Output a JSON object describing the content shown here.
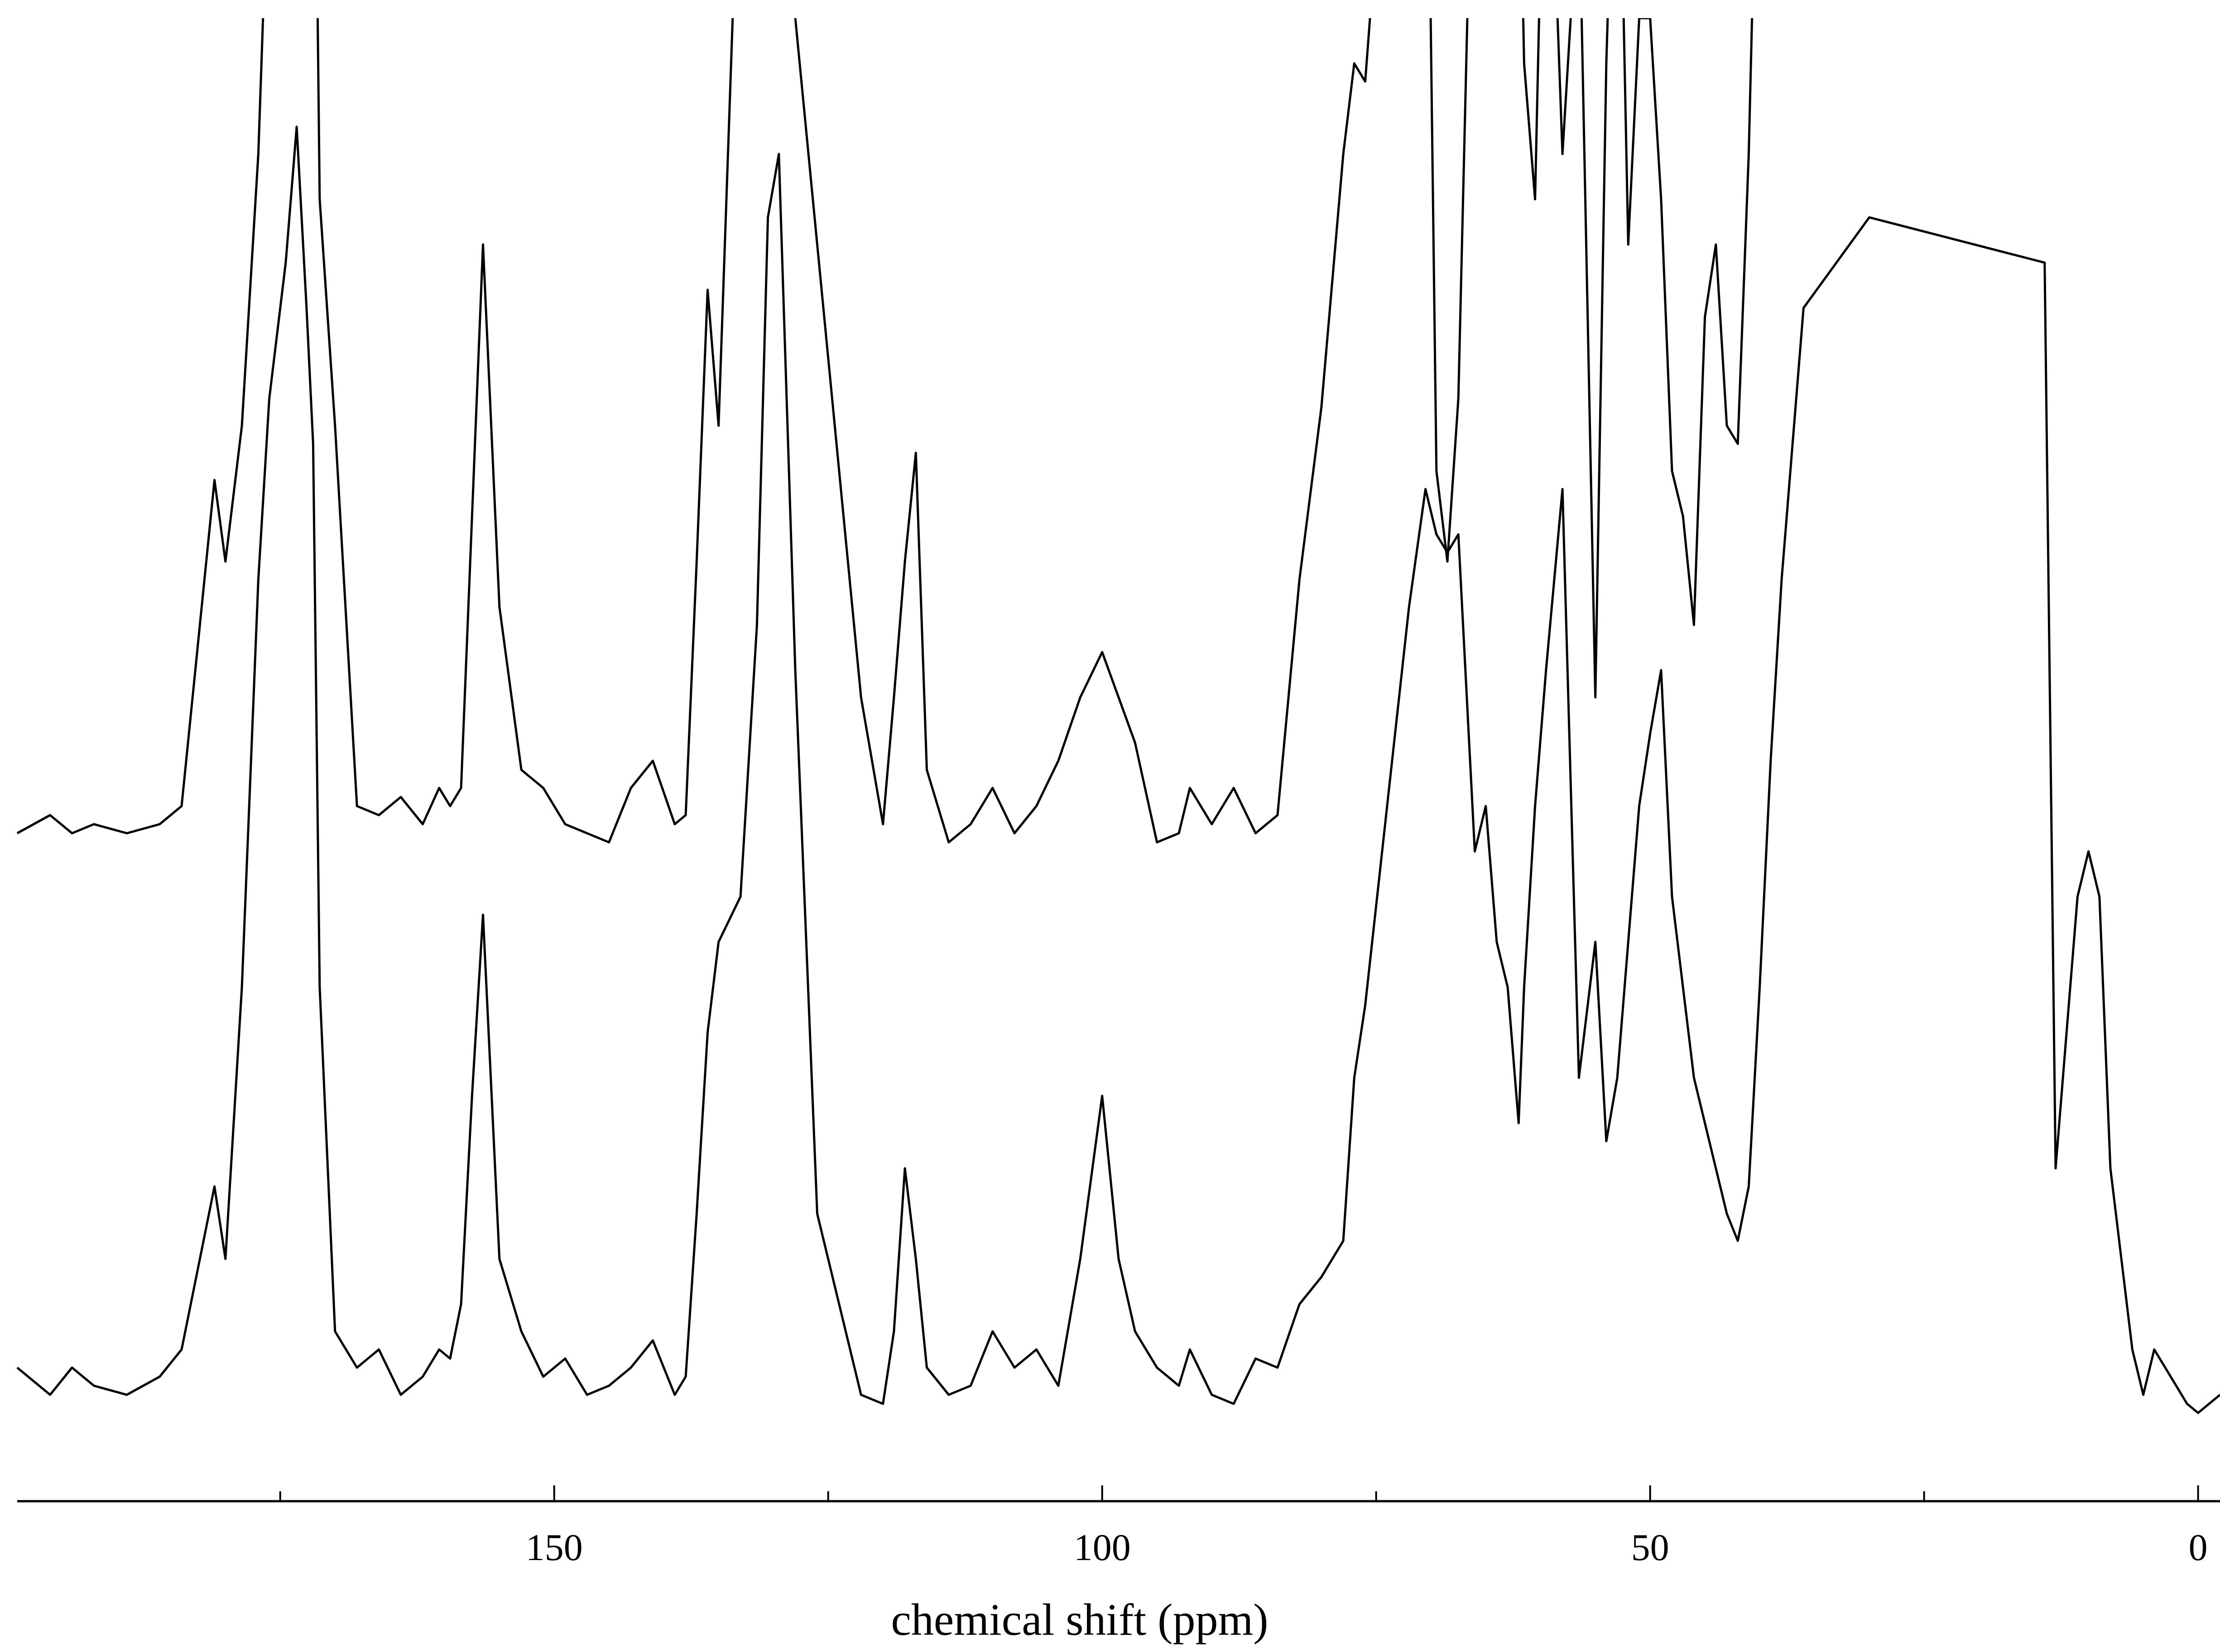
{
  "chart_data": {
    "type": "line",
    "title": "",
    "xlabel": "chemical shift (ppm)",
    "ylabel": "",
    "xlim": [
      199,
      -2
    ],
    "x_reversed": true,
    "ticks": {
      "major": [
        150,
        100,
        50,
        0
      ],
      "major_labels": [
        "150",
        "100",
        "50",
        "0"
      ],
      "minor": [
        175,
        125,
        75,
        25
      ]
    },
    "grid": false,
    "legend": "none",
    "line_color": "#000000",
    "series": [
      {
        "offset": 0.62,
        "x": [
          199,
          196,
          194,
          192,
          189,
          186,
          184,
          181,
          180,
          178.5,
          177,
          176,
          174.5,
          173.5,
          172.6,
          172,
          171.4,
          170,
          168,
          166,
          164,
          162,
          160.5,
          159.5,
          158.5,
          157.5,
          156.5,
          155,
          153,
          151,
          149,
          147,
          145,
          143,
          141,
          139,
          138,
          137,
          136,
          135,
          133,
          131.5,
          130.5,
          129.5,
          128,
          126,
          124,
          122,
          120,
          119,
          118,
          117,
          116,
          114,
          112,
          110,
          108,
          106,
          104,
          102,
          100,
          98.5,
          97,
          95,
          93,
          92,
          90,
          88,
          86,
          84,
          82,
          80,
          78,
          77,
          76,
          74,
          72,
          70.5,
          69.5,
          68.5,
          67.5,
          66,
          65,
          64,
          63,
          62,
          61.5,
          60.5,
          59.5,
          58,
          56.5,
          55,
          54,
          53,
          52,
          51,
          50,
          49,
          48,
          47,
          46,
          45,
          44,
          43,
          42,
          41,
          40,
          39,
          38,
          37
        ],
        "y": [
          0.05,
          0.07,
          0.05,
          0.06,
          0.05,
          0.06,
          0.08,
          0.44,
          0.35,
          0.5,
          0.8,
          1.15,
          1.35,
          1.45,
          1.38,
          1.4,
          0.75,
          0.5,
          0.08,
          0.07,
          0.09,
          0.06,
          0.1,
          0.08,
          0.1,
          0.4,
          0.7,
          0.3,
          0.12,
          0.1,
          0.06,
          0.05,
          0.04,
          0.1,
          0.13,
          0.06,
          0.07,
          0.35,
          0.65,
          0.5,
          1.2,
          1.4,
          1.42,
          1.3,
          0.95,
          0.7,
          0.45,
          0.2,
          0.06,
          0.2,
          0.35,
          0.47,
          0.12,
          0.04,
          0.06,
          0.1,
          0.05,
          0.08,
          0.13,
          0.2,
          0.25,
          0.2,
          0.15,
          0.04,
          0.05,
          0.1,
          0.06,
          0.1,
          0.05,
          0.07,
          0.33,
          0.52,
          0.8,
          0.9,
          0.88,
          1.2,
          1.35,
          1.4,
          0.45,
          0.35,
          0.53,
          1.3,
          1.45,
          1.4,
          1.42,
          1.2,
          0.9,
          0.75,
          1.3,
          0.8,
          1.1,
          0.2,
          0.9,
          1.3,
          0.7,
          0.95,
          0.95,
          0.75,
          0.45,
          0.4,
          0.28,
          0.62,
          0.7,
          0.5,
          0.48,
          0.8,
          1.3,
          1.35,
          1.4,
          1.42
        ]
      },
      {
        "offset": 0.0,
        "x": [
          199,
          196,
          194,
          192,
          189,
          186,
          184,
          181,
          180,
          178.5,
          177,
          176,
          174.5,
          173.5,
          172.6,
          172,
          171.4,
          170,
          168,
          166,
          164,
          162,
          160.5,
          159.5,
          158.5,
          157.5,
          156.5,
          155,
          153,
          151,
          149,
          147,
          145,
          143,
          141,
          139,
          138,
          137,
          136,
          135,
          133,
          131.5,
          130.5,
          129.5,
          128,
          126,
          124,
          122,
          120,
          119,
          118,
          117,
          116,
          114,
          112,
          110,
          108,
          106,
          104,
          102,
          100,
          98.5,
          97,
          95,
          93,
          92,
          90,
          88,
          86,
          84,
          82,
          80,
          78,
          77,
          76,
          74,
          72,
          70.5,
          69.5,
          68.5,
          67.5,
          66,
          65,
          64,
          63,
          62,
          61.5,
          60.5,
          59.5,
          58,
          56.5,
          55,
          54,
          53,
          52,
          51,
          50,
          49,
          48,
          47,
          46,
          45,
          44,
          43,
          42,
          41,
          40,
          39,
          38,
          37,
          36,
          30,
          14,
          13,
          11,
          10,
          9,
          8,
          6,
          5,
          4,
          3,
          2,
          1,
          0,
          -2
        ],
        "y": [
          0.08,
          0.05,
          0.08,
          0.06,
          0.05,
          0.07,
          0.1,
          0.28,
          0.2,
          0.5,
          0.95,
          1.15,
          1.3,
          1.45,
          1.25,
          1.1,
          0.5,
          0.12,
          0.08,
          0.1,
          0.05,
          0.07,
          0.1,
          0.09,
          0.15,
          0.38,
          0.58,
          0.2,
          0.12,
          0.07,
          0.09,
          0.05,
          0.06,
          0.08,
          0.11,
          0.05,
          0.07,
          0.25,
          0.45,
          0.55,
          0.6,
          0.9,
          1.35,
          1.42,
          0.85,
          0.25,
          0.15,
          0.05,
          0.04,
          0.12,
          0.3,
          0.2,
          0.08,
          0.05,
          0.06,
          0.12,
          0.08,
          0.1,
          0.06,
          0.2,
          0.38,
          0.2,
          0.12,
          0.08,
          0.06,
          0.1,
          0.05,
          0.04,
          0.09,
          0.08,
          0.15,
          0.18,
          0.22,
          0.4,
          0.48,
          0.7,
          0.92,
          1.05,
          1.0,
          0.98,
          1.0,
          0.65,
          0.7,
          0.55,
          0.5,
          0.35,
          0.5,
          0.7,
          0.85,
          1.05,
          0.4,
          0.55,
          0.33,
          0.4,
          0.55,
          0.7,
          0.78,
          0.85,
          0.6,
          0.5,
          0.4,
          0.35,
          0.3,
          0.25,
          0.22,
          0.28,
          0.5,
          0.75,
          0.95,
          1.1,
          1.25,
          1.35,
          1.3,
          0.3,
          0.6,
          0.65,
          0.6,
          0.3,
          0.1,
          0.05,
          0.1,
          0.08,
          0.06,
          0.04,
          0.03,
          0.05
        ]
      }
    ]
  }
}
